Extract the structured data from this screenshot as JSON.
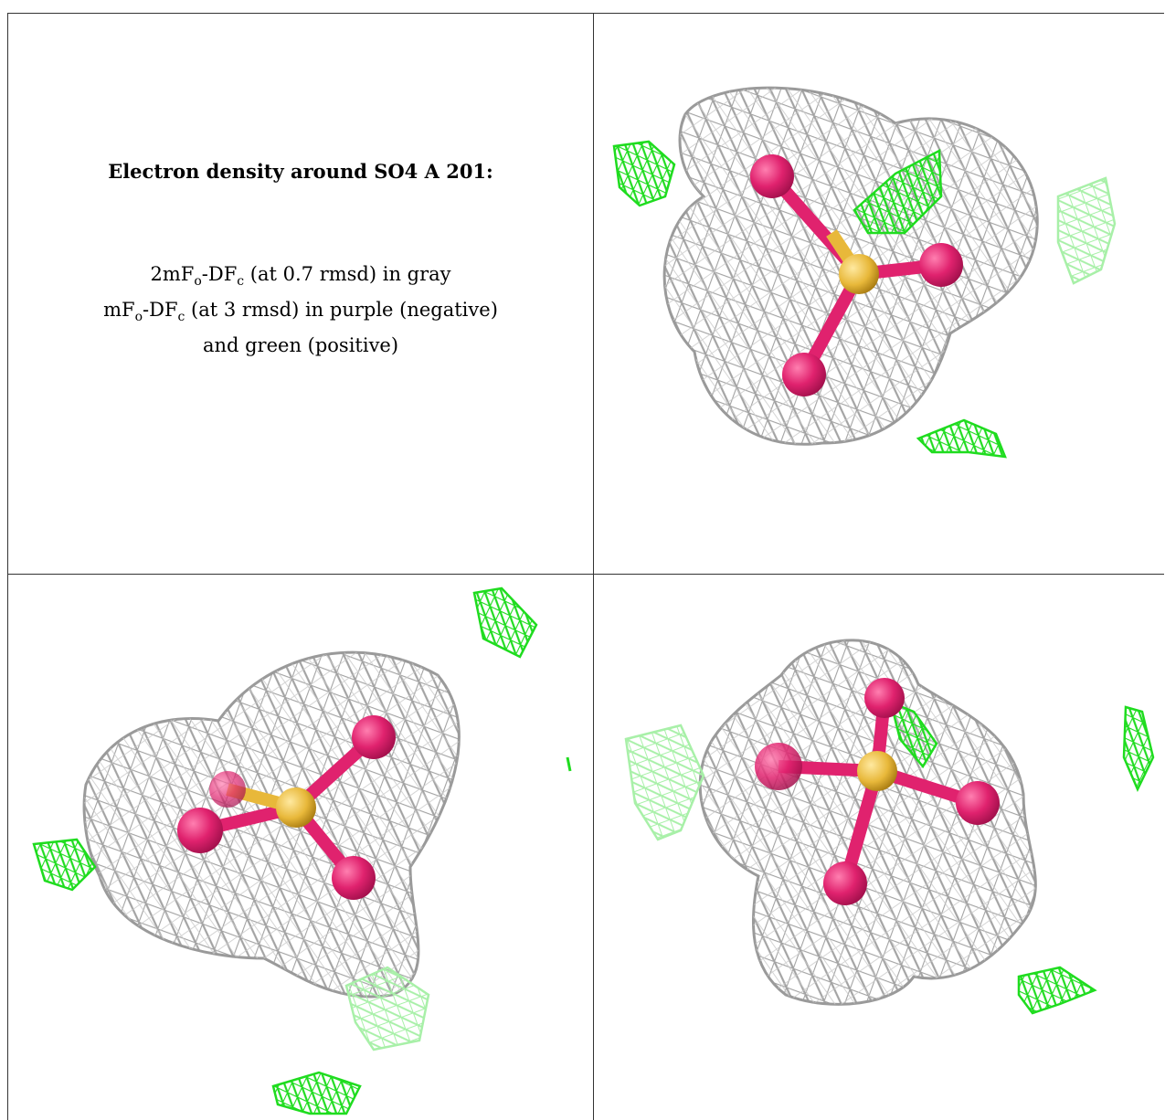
{
  "caption": {
    "title": "Electron density around SO4 A 201:",
    "line1_a": "2mF",
    "line1_sub1": "o",
    "line1_b": "-DF",
    "line1_sub2": "c",
    "line1_c": " (at 0.7 rmsd) in gray",
    "line2_a": "mF",
    "line2_sub1": "o",
    "line2_b": "-DF",
    "line2_sub2": "c",
    "line2_c": " (at 3 rmsd) in purple (negative)",
    "line3": "and green (positive)"
  },
  "colors": {
    "mesh_gray": "#9a9a9a",
    "mesh_gray_light": "#cfcfcf",
    "positive_green": "#1fdc1f",
    "positive_green_light": "#a8f0a8",
    "oxygen": "#e0226e",
    "sulfur": "#e8b83a"
  }
}
